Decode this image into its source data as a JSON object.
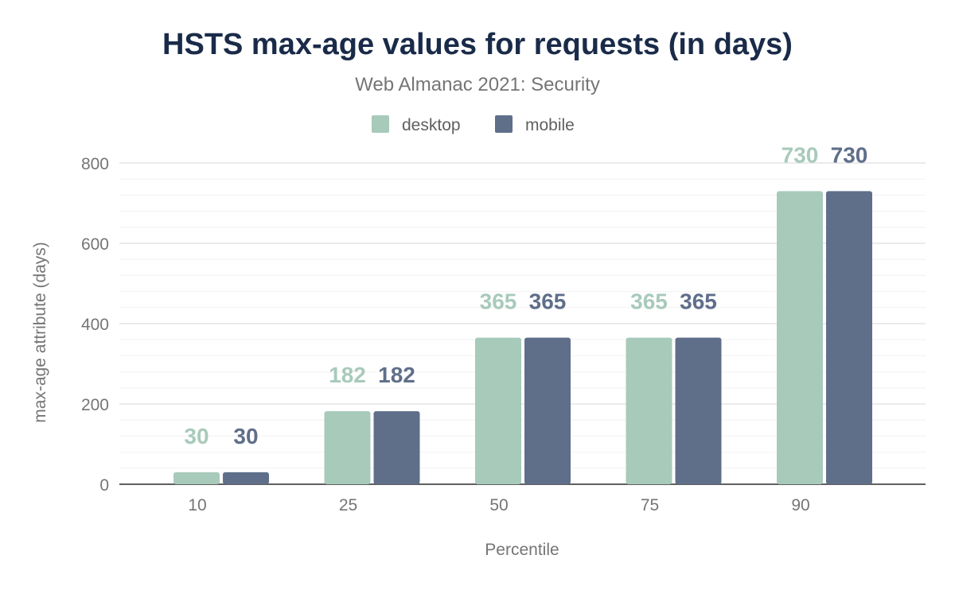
{
  "chart_data": {
    "type": "bar",
    "title": "HSTS max-age values for requests (in days)",
    "subtitle": "Web Almanac 2021: Security",
    "xlabel": "Percentile",
    "ylabel": "max-age attribute (days)",
    "categories": [
      "10",
      "25",
      "50",
      "75",
      "90"
    ],
    "series": [
      {
        "name": "desktop",
        "color": "#a8cabb",
        "values": [
          30,
          182,
          365,
          365,
          730
        ]
      },
      {
        "name": "mobile",
        "color": "#5f6f8a",
        "values": [
          30,
          182,
          365,
          365,
          730
        ]
      }
    ],
    "ylim": [
      0,
      800
    ],
    "yticks": [
      0,
      200,
      400,
      600,
      800
    ],
    "grid": true,
    "legend": "top-center",
    "data_labels": true
  }
}
